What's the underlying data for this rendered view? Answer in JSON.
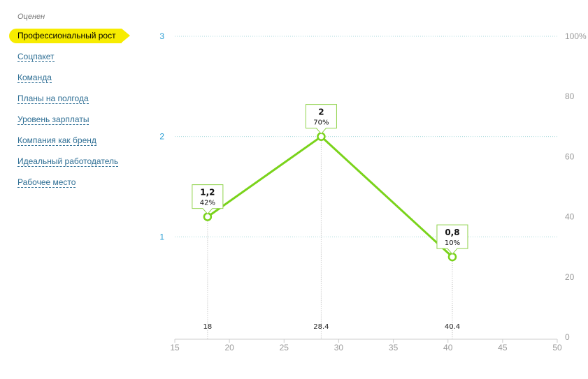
{
  "sidebar": {
    "heading": "Оценен",
    "items": [
      {
        "label": "Профессиональный рост",
        "active": true
      },
      {
        "label": "Соцпакет",
        "active": false
      },
      {
        "label": "Команда",
        "active": false
      },
      {
        "label": "Планы на полгода",
        "active": false
      },
      {
        "label": "Уровень зарплаты",
        "active": false
      },
      {
        "label": "Компания как бренд",
        "active": false
      },
      {
        "label": "Идеальный работодатель",
        "active": false
      },
      {
        "label": "Рабочее место",
        "active": false
      }
    ]
  },
  "colors": {
    "line": "#7ad31b",
    "badge_border": "#8fd24a",
    "left_axis_text": "#2a9ed4",
    "axis_text": "#9a9a9a",
    "gridline": "#a8d9dc",
    "active_item": "#f7ec00",
    "link": "#2f6f95"
  },
  "chart_data": {
    "type": "line",
    "x": [
      18,
      28.4,
      40.4
    ],
    "x_labels": [
      "18",
      "28.4",
      "40.4"
    ],
    "y": [
      1.2,
      2,
      0.8
    ],
    "point_labels": [
      "1,2",
      "2",
      "0,8"
    ],
    "point_percents": [
      "42%",
      "70%",
      "10%"
    ],
    "xlim": [
      15,
      50
    ],
    "x_ticks": [
      "15",
      "20",
      "25",
      "30",
      "35",
      "40",
      "45",
      "50"
    ],
    "ylim_left": [
      0,
      3
    ],
    "y_left_ticks": [
      "1",
      "2",
      "3"
    ],
    "ylim_right": [
      0,
      100
    ],
    "y_right_ticks": [
      "0",
      "20",
      "40",
      "60",
      "80",
      "100%"
    ],
    "grid": true
  }
}
